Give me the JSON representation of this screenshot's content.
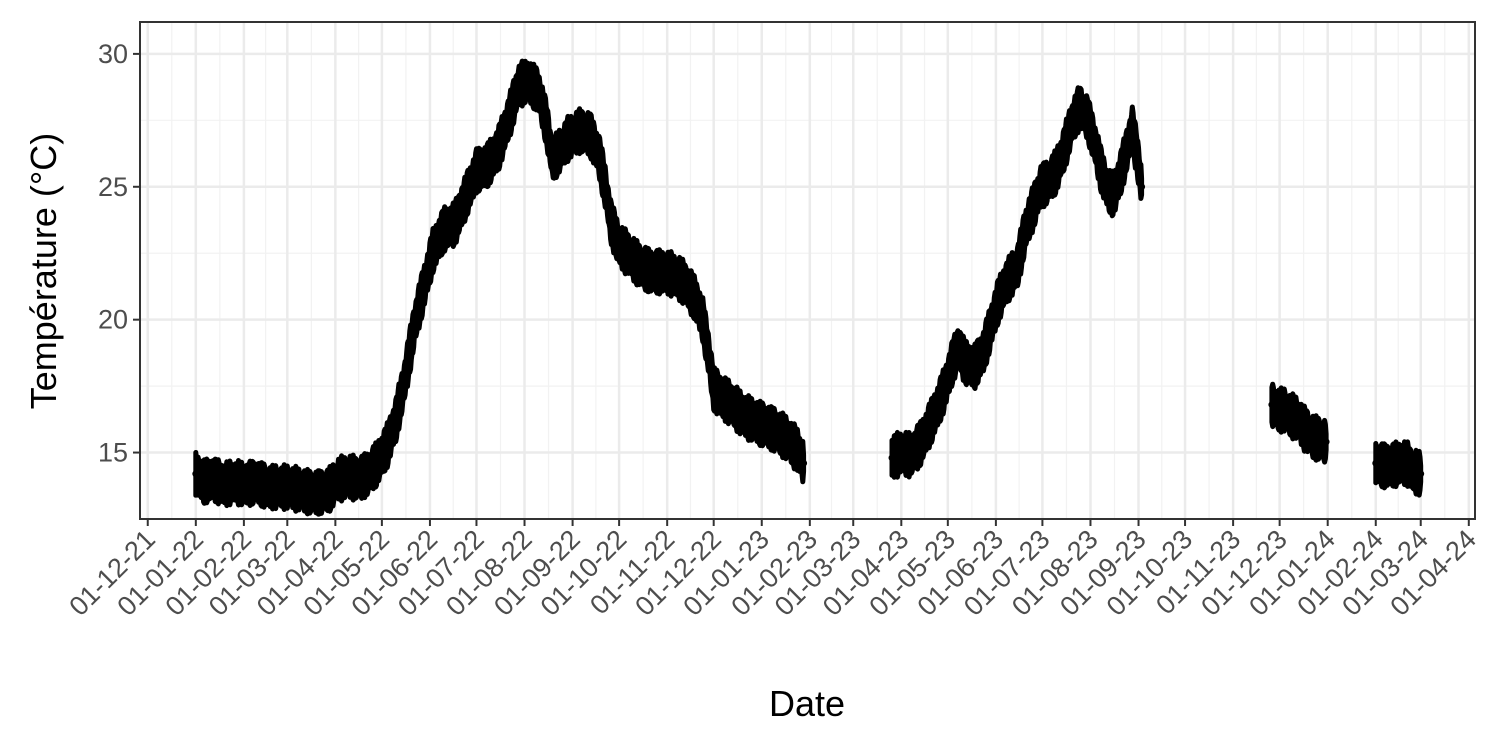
{
  "chart_data": {
    "type": "scatter",
    "title": "",
    "xlabel": "Date",
    "ylabel": "Température (°C)",
    "grid": true,
    "legend": "none",
    "xlim": [
      "2021-11-26",
      "2024-04-05"
    ],
    "ylim": [
      12.5,
      31.2
    ],
    "x_ticks": [
      {
        "date": "2021-12-01",
        "label": "01-12-21"
      },
      {
        "date": "2022-01-01",
        "label": "01-01-22"
      },
      {
        "date": "2022-02-01",
        "label": "01-02-22"
      },
      {
        "date": "2022-03-01",
        "label": "01-03-22"
      },
      {
        "date": "2022-04-01",
        "label": "01-04-22"
      },
      {
        "date": "2022-05-01",
        "label": "01-05-22"
      },
      {
        "date": "2022-06-01",
        "label": "01-06-22"
      },
      {
        "date": "2022-07-01",
        "label": "01-07-22"
      },
      {
        "date": "2022-08-01",
        "label": "01-08-22"
      },
      {
        "date": "2022-09-01",
        "label": "01-09-22"
      },
      {
        "date": "2022-10-01",
        "label": "01-10-22"
      },
      {
        "date": "2022-11-01",
        "label": "01-11-22"
      },
      {
        "date": "2022-12-01",
        "label": "01-12-22"
      },
      {
        "date": "2023-01-01",
        "label": "01-01-23"
      },
      {
        "date": "2023-02-01",
        "label": "01-02-23"
      },
      {
        "date": "2023-03-01",
        "label": "01-03-23"
      },
      {
        "date": "2023-04-01",
        "label": "01-04-23"
      },
      {
        "date": "2023-05-01",
        "label": "01-05-23"
      },
      {
        "date": "2023-06-01",
        "label": "01-06-23"
      },
      {
        "date": "2023-07-01",
        "label": "01-07-23"
      },
      {
        "date": "2023-08-01",
        "label": "01-08-23"
      },
      {
        "date": "2023-09-01",
        "label": "01-09-23"
      },
      {
        "date": "2023-10-01",
        "label": "01-10-23"
      },
      {
        "date": "2023-11-01",
        "label": "01-11-23"
      },
      {
        "date": "2023-12-01",
        "label": "01-12-23"
      },
      {
        "date": "2024-01-01",
        "label": "01-01-24"
      },
      {
        "date": "2024-02-01",
        "label": "01-02-24"
      },
      {
        "date": "2024-03-01",
        "label": "01-03-24"
      },
      {
        "date": "2024-04-01",
        "label": "01-04-24"
      }
    ],
    "y_ticks": [
      15,
      20,
      25,
      30
    ],
    "series": [
      {
        "color": "#000000",
        "segments": [
          {
            "points": [
              [
                "2022-01-01",
                14.2
              ],
              [
                "2022-01-06",
                13.9
              ],
              [
                "2022-01-12",
                14.0
              ],
              [
                "2022-01-19",
                13.8
              ],
              [
                "2022-01-26",
                13.9
              ],
              [
                "2022-02-02",
                13.8
              ],
              [
                "2022-02-09",
                13.9
              ],
              [
                "2022-02-16",
                13.7
              ],
              [
                "2022-02-23",
                13.7
              ],
              [
                "2022-03-02",
                13.7
              ],
              [
                "2022-03-09",
                13.6
              ],
              [
                "2022-03-16",
                13.5
              ],
              [
                "2022-03-23",
                13.5
              ],
              [
                "2022-03-28",
                13.6
              ],
              [
                "2022-04-03",
                14.0
              ],
              [
                "2022-04-10",
                14.1
              ],
              [
                "2022-04-16",
                14.0
              ],
              [
                "2022-04-22",
                14.2
              ],
              [
                "2022-04-28",
                14.6
              ],
              [
                "2022-05-04",
                15.2
              ],
              [
                "2022-05-10",
                16.2
              ],
              [
                "2022-05-16",
                17.8
              ],
              [
                "2022-05-22",
                19.8
              ],
              [
                "2022-05-28",
                21.2
              ],
              [
                "2022-06-03",
                22.6
              ],
              [
                "2022-06-10",
                23.4
              ],
              [
                "2022-06-17",
                23.6
              ],
              [
                "2022-06-24",
                24.6
              ],
              [
                "2022-07-01",
                25.6
              ],
              [
                "2022-07-08",
                25.8
              ],
              [
                "2022-07-15",
                26.4
              ],
              [
                "2022-07-22",
                27.6
              ],
              [
                "2022-07-28",
                28.8
              ],
              [
                "2022-08-03",
                29.0
              ],
              [
                "2022-08-10",
                28.6
              ],
              [
                "2022-08-15",
                27.4
              ],
              [
                "2022-08-19",
                26.0
              ],
              [
                "2022-08-23",
                26.3
              ],
              [
                "2022-08-29",
                26.8
              ],
              [
                "2022-09-05",
                27.1
              ],
              [
                "2022-09-12",
                27.0
              ],
              [
                "2022-09-18",
                26.2
              ],
              [
                "2022-09-22",
                25.0
              ],
              [
                "2022-09-26",
                23.6
              ],
              [
                "2022-10-01",
                22.8
              ],
              [
                "2022-10-08",
                22.4
              ],
              [
                "2022-10-15",
                22.0
              ],
              [
                "2022-10-22",
                21.8
              ],
              [
                "2022-10-29",
                21.8
              ],
              [
                "2022-11-05",
                21.7
              ],
              [
                "2022-11-12",
                21.4
              ],
              [
                "2022-11-19",
                20.8
              ],
              [
                "2022-11-24",
                20.0
              ],
              [
                "2022-11-28",
                18.6
              ],
              [
                "2022-12-01",
                17.4
              ],
              [
                "2022-12-06",
                17.1
              ],
              [
                "2022-12-13",
                16.8
              ],
              [
                "2022-12-20",
                16.4
              ],
              [
                "2022-12-27",
                16.2
              ],
              [
                "2023-01-04",
                16.0
              ],
              [
                "2023-01-11",
                15.8
              ],
              [
                "2023-01-18",
                15.5
              ],
              [
                "2023-01-24",
                15.1
              ],
              [
                "2023-01-28",
                14.6
              ]
            ]
          },
          {
            "points": [
              [
                "2023-03-26",
                14.8
              ],
              [
                "2023-04-01",
                15.0
              ],
              [
                "2023-04-07",
                14.9
              ],
              [
                "2023-04-13",
                15.3
              ],
              [
                "2023-04-19",
                16.0
              ],
              [
                "2023-04-25",
                16.8
              ],
              [
                "2023-04-30",
                17.6
              ],
              [
                "2023-05-04",
                18.4
              ],
              [
                "2023-05-08",
                19.0
              ],
              [
                "2023-05-12",
                18.4
              ],
              [
                "2023-05-18",
                18.2
              ],
              [
                "2023-05-24",
                18.8
              ],
              [
                "2023-05-29",
                19.8
              ],
              [
                "2023-06-02",
                20.6
              ],
              [
                "2023-06-06",
                21.2
              ],
              [
                "2023-06-10",
                21.6
              ],
              [
                "2023-06-15",
                22.0
              ],
              [
                "2023-06-20",
                23.4
              ],
              [
                "2023-06-25",
                24.2
              ],
              [
                "2023-06-30",
                25.0
              ],
              [
                "2023-07-05",
                25.2
              ],
              [
                "2023-07-10",
                25.6
              ],
              [
                "2023-07-15",
                26.4
              ],
              [
                "2023-07-20",
                27.4
              ],
              [
                "2023-07-25",
                28.0
              ],
              [
                "2023-07-30",
                27.6
              ],
              [
                "2023-08-04",
                26.6
              ],
              [
                "2023-08-08",
                25.6
              ],
              [
                "2023-08-12",
                24.9
              ],
              [
                "2023-08-16",
                24.7
              ],
              [
                "2023-08-20",
                25.4
              ],
              [
                "2023-08-24",
                26.3
              ],
              [
                "2023-08-28",
                27.2
              ],
              [
                "2023-08-31",
                26.2
              ],
              [
                "2023-09-03",
                25.0
              ]
            ]
          },
          {
            "points": [
              [
                "2023-11-26",
                16.8
              ],
              [
                "2023-11-30",
                16.6
              ],
              [
                "2023-12-04",
                16.6
              ],
              [
                "2023-12-08",
                16.4
              ],
              [
                "2023-12-12",
                16.3
              ],
              [
                "2023-12-17",
                15.9
              ],
              [
                "2023-12-22",
                15.6
              ],
              [
                "2023-12-27",
                15.5
              ],
              [
                "2023-12-31",
                15.4
              ]
            ]
          },
          {
            "points": [
              [
                "2024-02-01",
                14.6
              ],
              [
                "2024-02-06",
                14.5
              ],
              [
                "2024-02-11",
                14.5
              ],
              [
                "2024-02-16",
                14.6
              ],
              [
                "2024-02-21",
                14.6
              ],
              [
                "2024-02-25",
                14.3
              ],
              [
                "2024-03-01",
                14.2
              ]
            ]
          }
        ]
      }
    ]
  }
}
